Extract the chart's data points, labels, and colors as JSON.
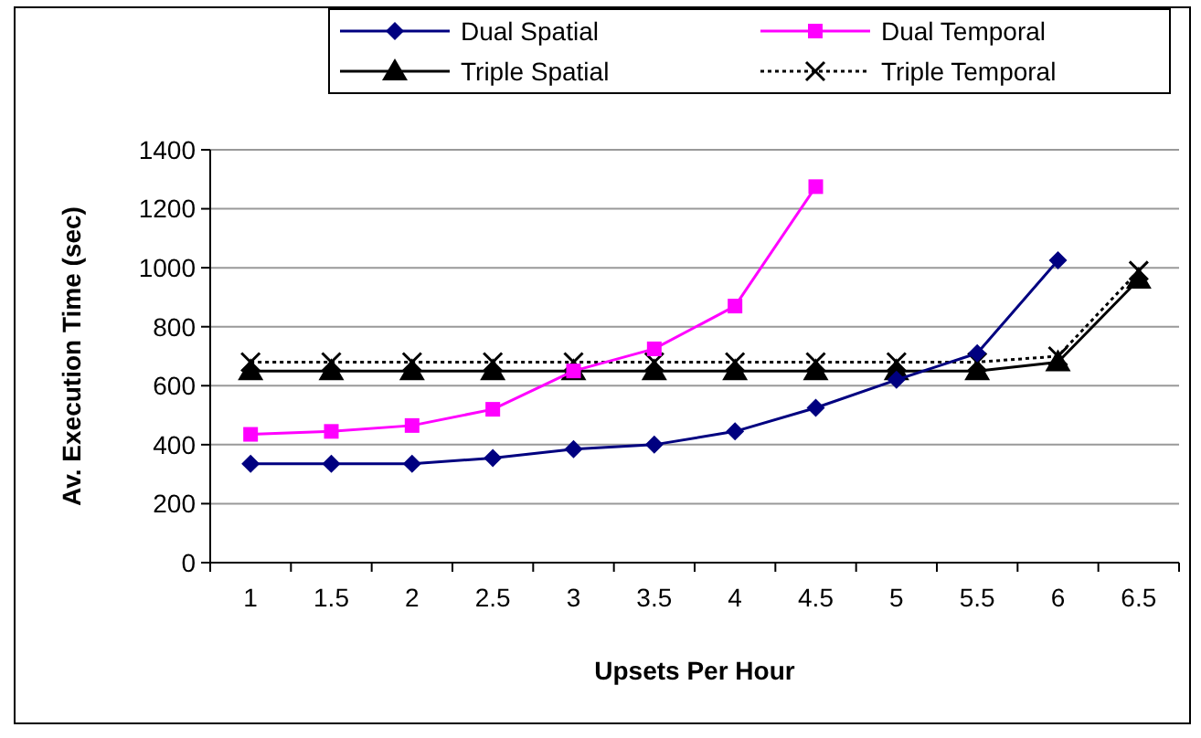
{
  "chart_data": {
    "type": "line",
    "xlabel": "Upsets Per Hour",
    "ylabel": "Av. Execution Time (sec)",
    "categories": [
      "1",
      "1.5",
      "2",
      "2.5",
      "3",
      "3.5",
      "4",
      "4.5",
      "5",
      "5.5",
      "6",
      "6.5"
    ],
    "ylim": [
      0,
      1400
    ],
    "yticks": [
      0,
      200,
      400,
      600,
      800,
      1000,
      1200,
      1400
    ],
    "grid": "y",
    "legend": "top",
    "series": [
      {
        "name": "Dual Spatial",
        "color": "#000080",
        "marker": "diamond",
        "line_style": "solid",
        "values": [
          335,
          335,
          335,
          355,
          385,
          400,
          445,
          525,
          620,
          710,
          1025,
          null
        ]
      },
      {
        "name": "Dual Temporal",
        "color": "#ff00ff",
        "marker": "square",
        "line_style": "solid",
        "values": [
          435,
          445,
          465,
          520,
          650,
          725,
          870,
          1275,
          null,
          null,
          null,
          null
        ]
      },
      {
        "name": "Triple Spatial",
        "color": "#000000",
        "marker": "triangle",
        "line_style": "solid",
        "values": [
          650,
          650,
          650,
          650,
          650,
          650,
          650,
          650,
          650,
          650,
          680,
          960
        ]
      },
      {
        "name": "Triple Temporal",
        "color": "#000000",
        "marker": "cross",
        "line_style": "dotted",
        "values": [
          680,
          680,
          680,
          680,
          680,
          680,
          680,
          680,
          680,
          680,
          700,
          990
        ]
      }
    ]
  }
}
